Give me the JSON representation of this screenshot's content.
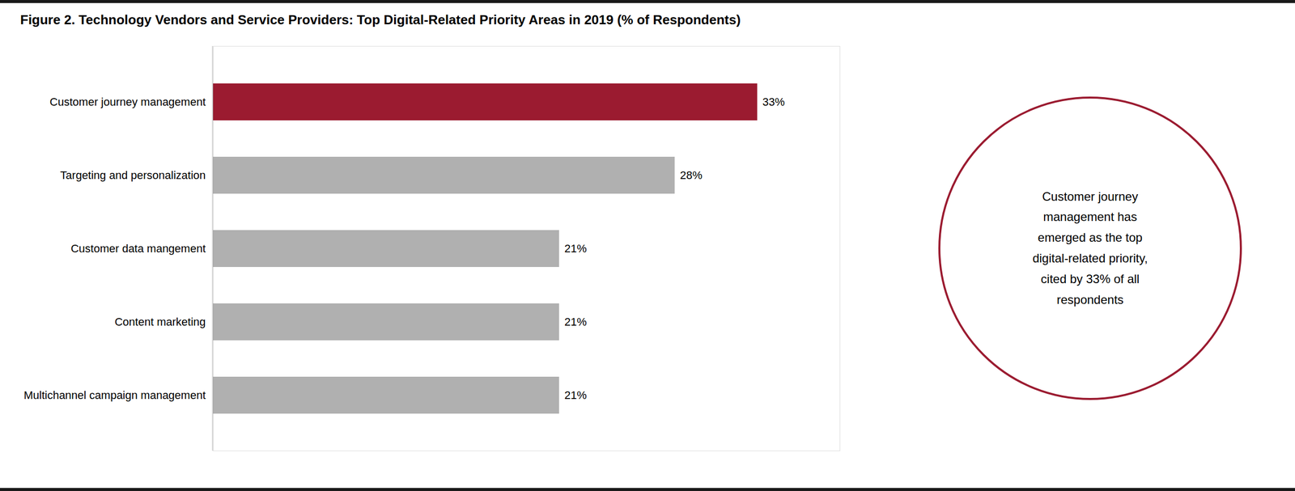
{
  "chart_data": {
    "type": "bar",
    "orientation": "horizontal",
    "title": "Figure 2. Technology Vendors and Service Providers: Top Digital-Related Priority Areas in 2019 (% of Respondents)",
    "categories": [
      "Multichannel campaign management",
      "Content marketing",
      "Customer data mangement",
      "Targeting and personalization",
      "Customer journey management"
    ],
    "values": [
      21,
      21,
      21,
      28,
      33
    ],
    "value_labels": [
      "21%",
      "21%",
      "21%",
      "28%",
      "33%"
    ],
    "colors": [
      "#b0b0b0",
      "#b0b0b0",
      "#b0b0b0",
      "#b0b0b0",
      "#9b1b30"
    ],
    "xlim": [
      0,
      38
    ],
    "tick_labels": "y",
    "data_labels": true,
    "grid": false,
    "annotations": [
      {
        "text": "Customer journey\nmanagement has\nemerged as the top\ndigital-related priority,\ncited by 33% of all\nrespondents",
        "color": "#9b1b30"
      }
    ]
  }
}
